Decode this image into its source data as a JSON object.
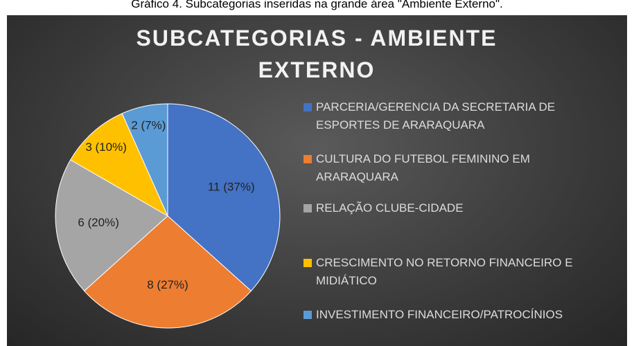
{
  "caption": "Gráfico 4. Subcategorias inseridas na grande área \"Ambiente Externo\".",
  "chart_data": {
    "type": "pie",
    "title": "SUBCATEGORIAS - AMBIENTE EXTERNO",
    "categories": [
      "PARCERIA/GERENCIA DA SECRETARIA DE ESPORTES DE ARARAQUARA",
      "CULTURA DO FUTEBOL FEMININO EM ARARAQUARA",
      "RELAÇÃO CLUBE-CIDADE",
      "CRESCIMENTO NO RETORNO FINANCEIRO E MIDIÁTICO",
      "INVESTIMENTO FINANCEIRO/PATROCÍNIOS"
    ],
    "values": [
      11,
      8,
      6,
      3,
      2
    ],
    "value_labels": [
      "11 (37%)",
      "8 (27%)",
      "6 (20%)",
      "3 (10%)",
      "2 (7%)"
    ],
    "colors": [
      "#4472c4",
      "#ed7d31",
      "#a5a5a5",
      "#ffc000",
      "#5b9bd5"
    ],
    "legend": "right"
  }
}
